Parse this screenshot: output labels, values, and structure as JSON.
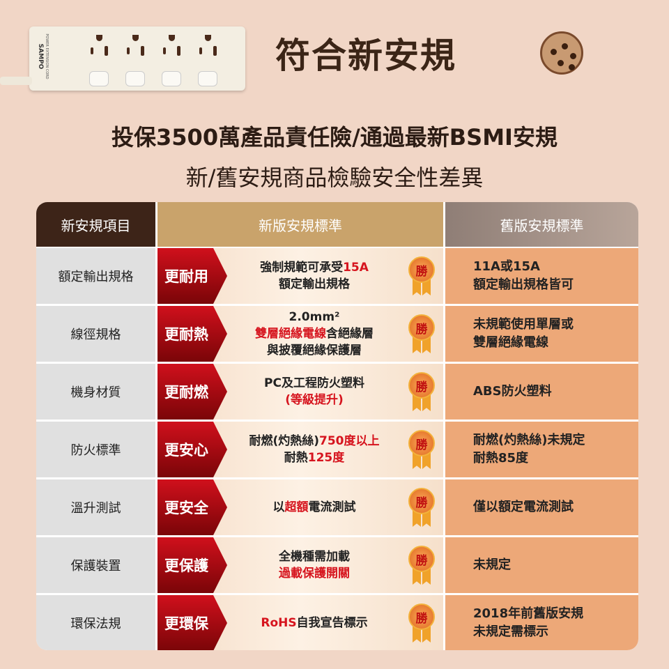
{
  "product": {
    "brand": "SAMPO",
    "model_text": "POWER EXTENSION CORD"
  },
  "hero_title": "符合新安規",
  "headline": "投保3500萬產品責任險/通過最新BSMI安規",
  "subheadline": "新/舊安規商品檢驗安全性差異",
  "colors": {
    "header_col1": "#3d2418",
    "header_col2": "#c9a36b",
    "header_col3": "#a08e85",
    "tag_red": "#d0101c",
    "old_cell": "#eda878"
  },
  "table": {
    "headers": [
      "新安規項目",
      "新版安規標準",
      "舊版安規標準"
    ],
    "win_label": "勝",
    "rows": [
      {
        "item": "額定輸出規格",
        "tag": "更耐用",
        "new": [
          [
            [
              "強制規範可承受",
              ""
            ],
            [
              "15A",
              "red"
            ]
          ],
          [
            [
              "額定輸出規格",
              ""
            ]
          ]
        ],
        "old": [
          "11A或15A",
          "額定輸出規格皆可"
        ]
      },
      {
        "item": "線徑規格",
        "tag": "更耐熱",
        "new": [
          [
            [
              "2.0mm²",
              ""
            ]
          ],
          [
            [
              "雙層絕緣電線",
              "red"
            ],
            [
              "含絕緣層",
              ""
            ]
          ],
          [
            [
              "與披覆絕緣保護層",
              ""
            ]
          ]
        ],
        "old": [
          "未規範使用單層或",
          "雙層絕緣電線"
        ]
      },
      {
        "item": "機身材質",
        "tag": "更耐燃",
        "new": [
          [
            [
              "PC及工程防火塑料",
              ""
            ]
          ],
          [
            [
              "(等級提升)",
              "red"
            ]
          ]
        ],
        "old": [
          "ABS防火塑料"
        ]
      },
      {
        "item": "防火標準",
        "tag": "更安心",
        "new": [
          [
            [
              "耐燃(灼熱絲)",
              ""
            ],
            [
              "750度以上",
              "red"
            ]
          ],
          [
            [
              "耐熱",
              ""
            ],
            [
              "125度",
              "red"
            ]
          ]
        ],
        "old": [
          "耐燃(灼熱絲)未規定",
          "耐熱85度"
        ]
      },
      {
        "item": "溫升測試",
        "tag": "更安全",
        "new": [
          [
            [
              "以",
              ""
            ],
            [
              "超額",
              "red"
            ],
            [
              "電流測試",
              ""
            ]
          ]
        ],
        "old": [
          "僅以額定電流測試"
        ]
      },
      {
        "item": "保護裝置",
        "tag": "更保護",
        "new": [
          [
            [
              "全機種需加載",
              ""
            ]
          ],
          [
            [
              "過載保護開關",
              "red"
            ]
          ]
        ],
        "old": [
          "未規定"
        ]
      },
      {
        "item": "環保法規",
        "tag": "更環保",
        "new": [
          [
            [
              "RoHS",
              "red"
            ],
            [
              "自我宣告標示",
              ""
            ]
          ]
        ],
        "old": [
          "2018年前舊版安規",
          "未規定需標示"
        ]
      }
    ]
  }
}
